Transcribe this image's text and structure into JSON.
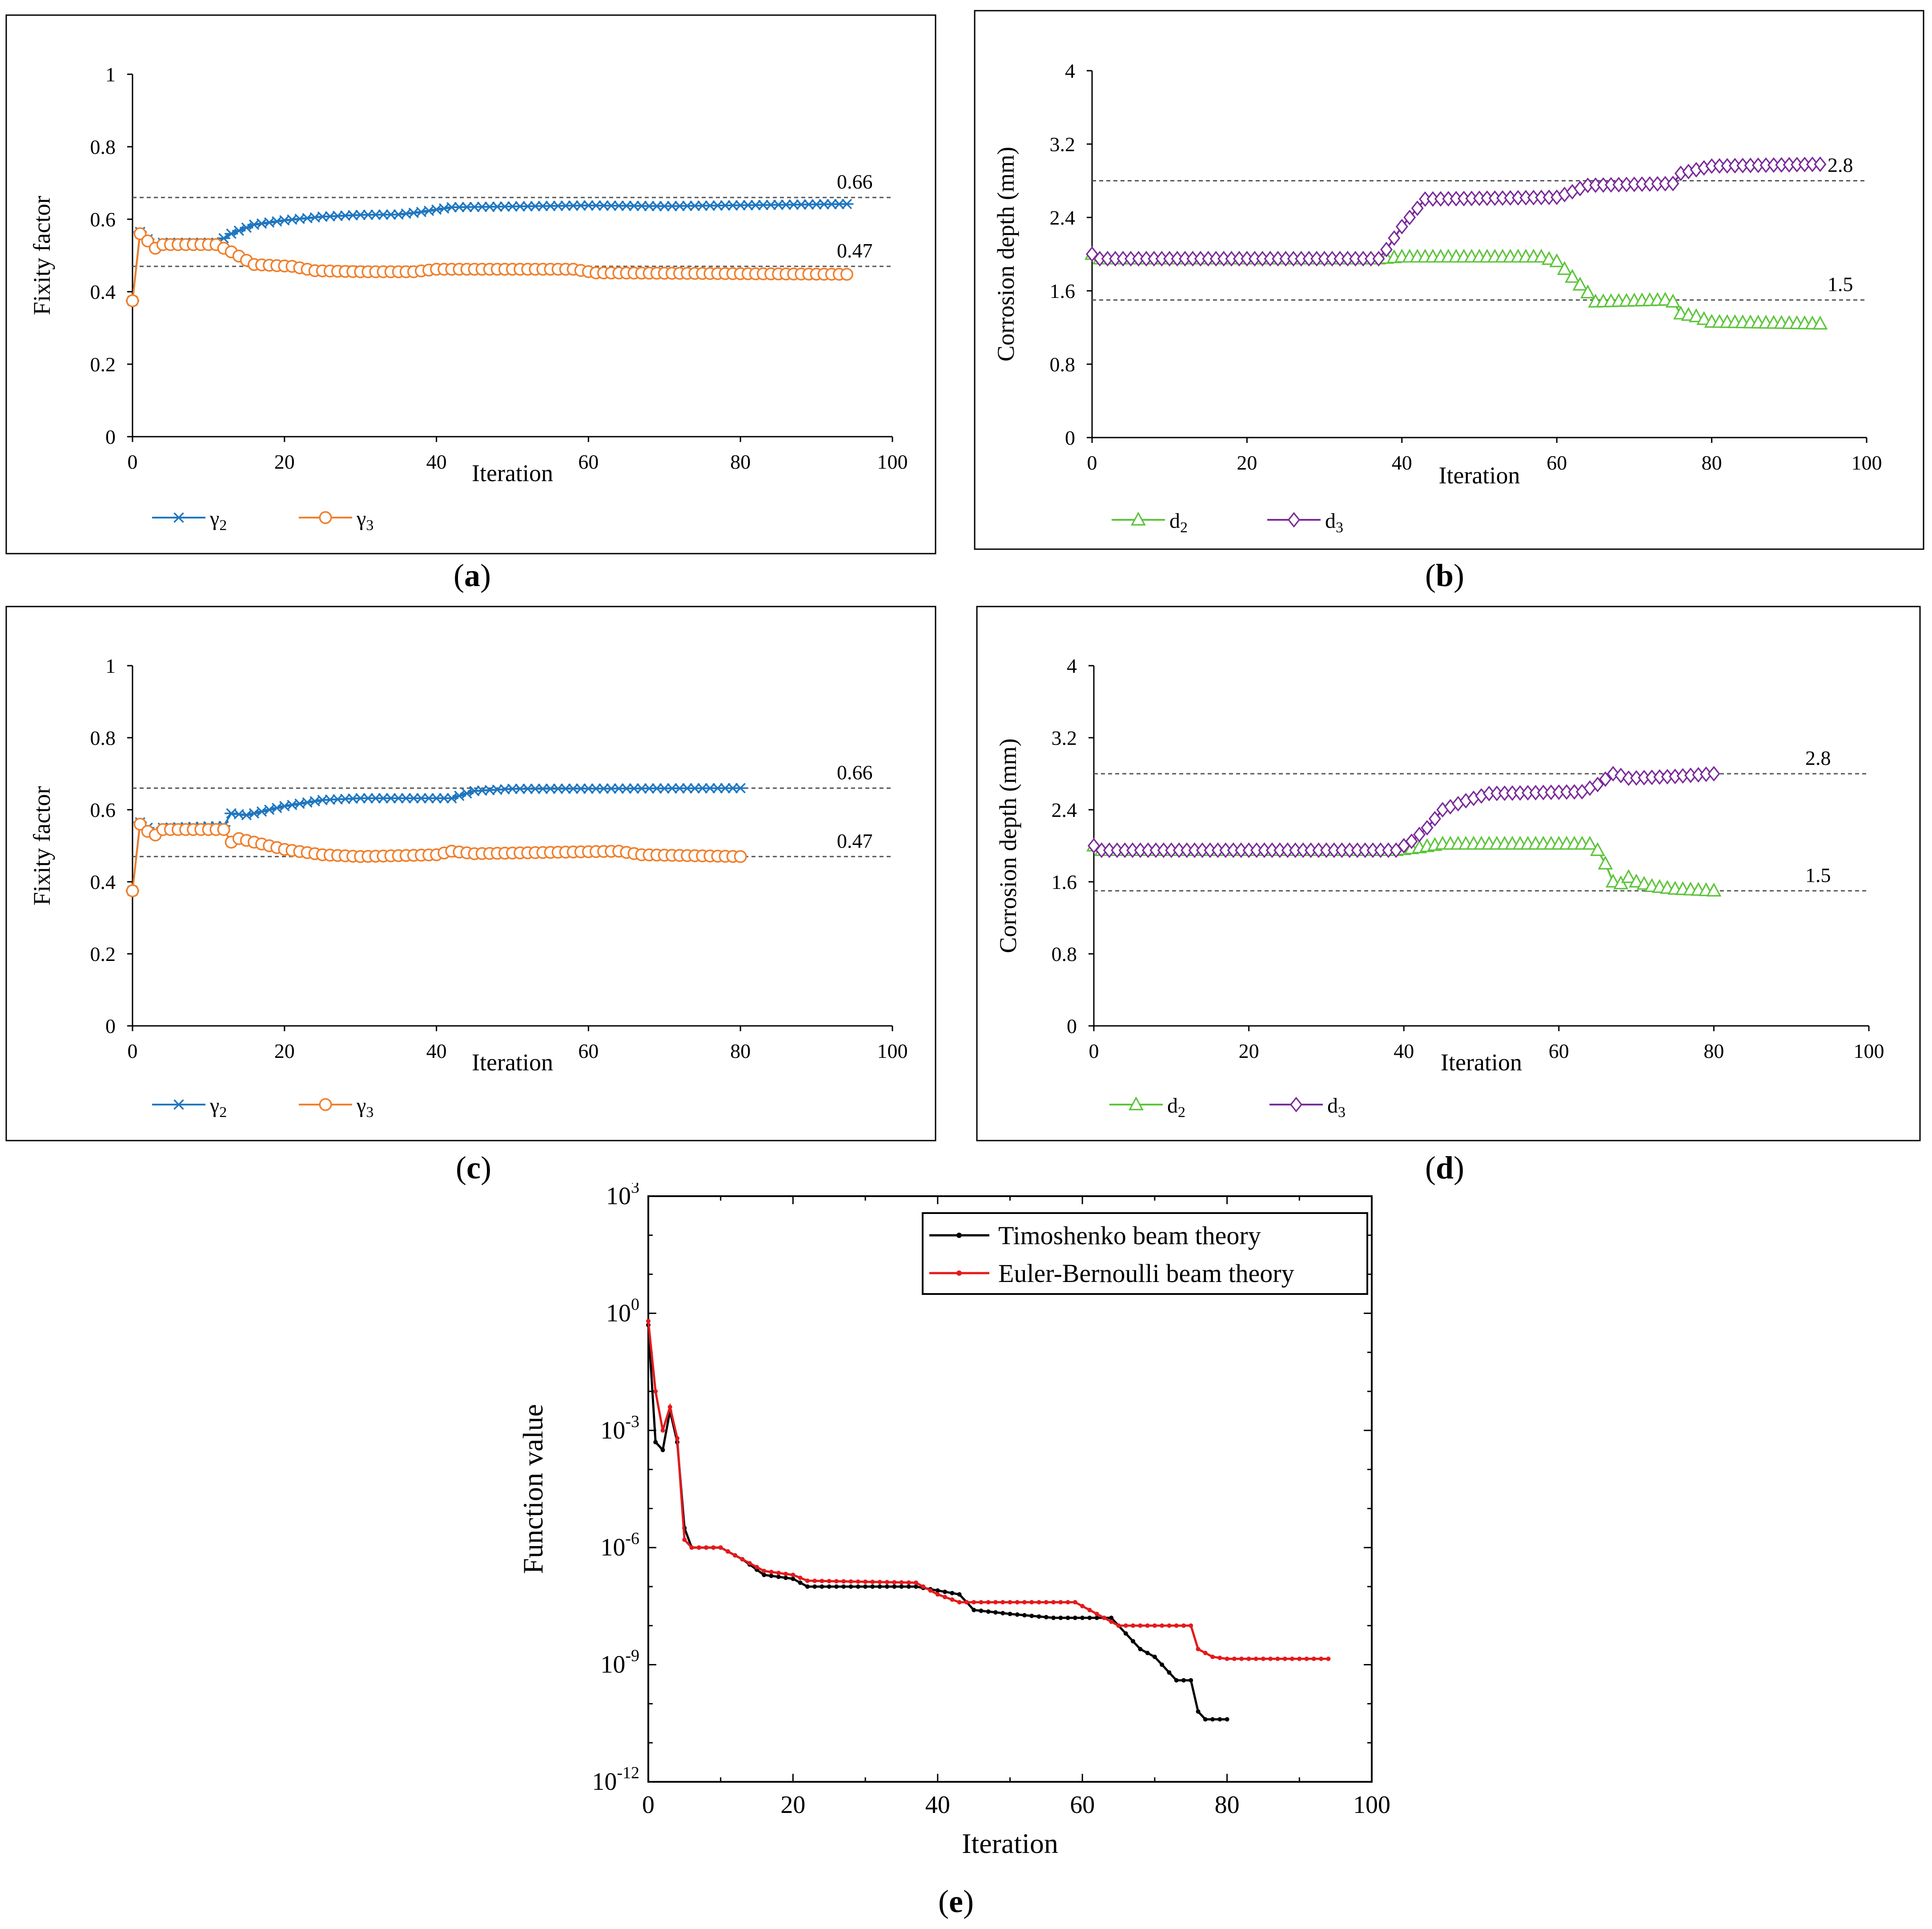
{
  "captions": {
    "a": {
      "open": "(",
      "letter": "a",
      "close": ")"
    },
    "b": {
      "open": "(",
      "letter": "b",
      "close": ")"
    },
    "c": {
      "open": "(",
      "letter": "c",
      "close": ")"
    },
    "d": {
      "open": "(",
      "letter": "d",
      "close": ")"
    },
    "e": {
      "open": "(",
      "letter": "e",
      "close": ")"
    }
  },
  "colors": {
    "blue": "#1f77c0",
    "orange": "#f07f2c",
    "green": "#5cc43a",
    "purple": "#7a2a9a",
    "black": "#000000",
    "red": "#e41a1c"
  },
  "chart_data": [
    {
      "id": "a",
      "type": "line",
      "xlabel": "Iteration",
      "ylabel": "Fixity factor",
      "xlim": [
        0,
        100
      ],
      "ylim": [
        0,
        1
      ],
      "xticks": [
        "0",
        "20",
        "40",
        "60",
        "80",
        "100"
      ],
      "yticks": [
        "0",
        "0.2",
        "0.4",
        "0.6",
        "0.8",
        "1"
      ],
      "ref_lines": [
        {
          "y": 0.66,
          "label": "0.66"
        },
        {
          "y": 0.47,
          "label": "0.47"
        }
      ],
      "series": [
        {
          "name": "γ₂",
          "sub": "2",
          "base": "γ",
          "color": "#1f77c0",
          "marker": "asterisk",
          "keyframes": [
            [
              0,
              0.375
            ],
            [
              1,
              0.565
            ],
            [
              2,
              0.545
            ],
            [
              3,
              0.525
            ],
            [
              4,
              0.535
            ],
            [
              11,
              0.535
            ],
            [
              13,
              0.56
            ],
            [
              16,
              0.585
            ],
            [
              20,
              0.597
            ],
            [
              25,
              0.607
            ],
            [
              30,
              0.612
            ],
            [
              35,
              0.613
            ],
            [
              38,
              0.62
            ],
            [
              42,
              0.633
            ],
            [
              60,
              0.638
            ],
            [
              70,
              0.636
            ],
            [
              94,
              0.642
            ]
          ],
          "n": 95
        },
        {
          "name": "γ₃",
          "sub": "3",
          "base": "γ",
          "color": "#f07f2c",
          "marker": "circle",
          "keyframes": [
            [
              0,
              0.375
            ],
            [
              1,
              0.56
            ],
            [
              2,
              0.54
            ],
            [
              3,
              0.52
            ],
            [
              4,
              0.53
            ],
            [
              11,
              0.53
            ],
            [
              13,
              0.51
            ],
            [
              16,
              0.475
            ],
            [
              21,
              0.47
            ],
            [
              24,
              0.458
            ],
            [
              30,
              0.455
            ],
            [
              37,
              0.455
            ],
            [
              40,
              0.462
            ],
            [
              58,
              0.462
            ],
            [
              61,
              0.452
            ],
            [
              94,
              0.448
            ]
          ],
          "n": 95
        }
      ]
    },
    {
      "id": "b",
      "type": "line",
      "xlabel": "Iteration",
      "ylabel": "Corrosion depth  (mm)",
      "xlim": [
        0,
        100
      ],
      "ylim": [
        0,
        4
      ],
      "xticks": [
        "0",
        "20",
        "40",
        "60",
        "80",
        "100"
      ],
      "yticks": [
        "0",
        "0.8",
        "1.6",
        "2.4",
        "3.2",
        "4"
      ],
      "ref_lines": [
        {
          "y": 2.8,
          "label": "2.8"
        },
        {
          "y": 1.5,
          "label": "1.5"
        }
      ],
      "series": [
        {
          "name": "d₂",
          "sub": "2",
          "base": "d",
          "color": "#5cc43a",
          "marker": "triangle",
          "keyframes": [
            [
              0,
              2.0
            ],
            [
              1,
              1.95
            ],
            [
              37,
              1.95
            ],
            [
              40,
              1.97
            ],
            [
              58,
              1.97
            ],
            [
              60,
              1.92
            ],
            [
              62,
              1.75
            ],
            [
              64,
              1.58
            ],
            [
              65,
              1.48
            ],
            [
              74,
              1.5
            ],
            [
              75,
              1.48
            ],
            [
              76,
              1.35
            ],
            [
              78,
              1.32
            ],
            [
              80,
              1.26
            ],
            [
              94,
              1.24
            ]
          ],
          "n": 95
        },
        {
          "name": "d₃",
          "sub": "3",
          "base": "d",
          "color": "#7a2a9a",
          "marker": "diamond",
          "keyframes": [
            [
              0,
              2.0
            ],
            [
              1,
              1.95
            ],
            [
              37,
              1.95
            ],
            [
              38,
              2.05
            ],
            [
              40,
              2.3
            ],
            [
              42,
              2.5
            ],
            [
              43,
              2.6
            ],
            [
              60,
              2.62
            ],
            [
              62,
              2.68
            ],
            [
              64,
              2.75
            ],
            [
              75,
              2.77
            ],
            [
              76,
              2.88
            ],
            [
              78,
              2.92
            ],
            [
              80,
              2.96
            ],
            [
              94,
              2.98
            ]
          ],
          "n": 95
        }
      ]
    },
    {
      "id": "c",
      "type": "line",
      "xlabel": "Iteration",
      "ylabel": "Fixity factor",
      "xlim": [
        0,
        100
      ],
      "ylim": [
        0,
        1
      ],
      "xticks": [
        "0",
        "20",
        "40",
        "60",
        "80",
        "100"
      ],
      "yticks": [
        "0",
        "0.2",
        "0.4",
        "0.6",
        "0.8",
        "1"
      ],
      "ref_lines": [
        {
          "y": 0.66,
          "label": "0.66"
        },
        {
          "y": 0.47,
          "label": "0.47"
        }
      ],
      "series": [
        {
          "name": "γ₂",
          "sub": "2",
          "base": "γ",
          "color": "#1f77c0",
          "marker": "asterisk",
          "keyframes": [
            [
              0,
              0.375
            ],
            [
              1,
              0.565
            ],
            [
              2,
              0.55
            ],
            [
              3,
              0.535
            ],
            [
              4,
              0.55
            ],
            [
              12,
              0.555
            ],
            [
              13,
              0.59
            ],
            [
              15,
              0.585
            ],
            [
              20,
              0.61
            ],
            [
              25,
              0.627
            ],
            [
              30,
              0.632
            ],
            [
              42,
              0.632
            ],
            [
              45,
              0.652
            ],
            [
              50,
              0.658
            ],
            [
              80,
              0.66
            ]
          ],
          "n": 81
        },
        {
          "name": "γ₃",
          "sub": "3",
          "base": "γ",
          "color": "#f07f2c",
          "marker": "circle",
          "keyframes": [
            [
              0,
              0.375
            ],
            [
              1,
              0.56
            ],
            [
              2,
              0.54
            ],
            [
              3,
              0.53
            ],
            [
              4,
              0.545
            ],
            [
              12,
              0.545
            ],
            [
              13,
              0.51
            ],
            [
              14,
              0.52
            ],
            [
              20,
              0.49
            ],
            [
              25,
              0.475
            ],
            [
              30,
              0.47
            ],
            [
              40,
              0.475
            ],
            [
              42,
              0.485
            ],
            [
              45,
              0.478
            ],
            [
              64,
              0.485
            ],
            [
              67,
              0.475
            ],
            [
              80,
              0.47
            ]
          ],
          "n": 81
        }
      ]
    },
    {
      "id": "d",
      "type": "line",
      "xlabel": "Iteration",
      "ylabel": "Corrosion depth  (mm)",
      "xlim": [
        0,
        100
      ],
      "ylim": [
        0,
        4
      ],
      "xticks": [
        "0",
        "20",
        "40",
        "60",
        "80",
        "100"
      ],
      "yticks": [
        "0",
        "0.8",
        "1.6",
        "2.4",
        "3.2",
        "4"
      ],
      "ref_lines": [
        {
          "y": 2.8,
          "label": "2.8"
        },
        {
          "y": 1.5,
          "label": "1.5"
        }
      ],
      "series": [
        {
          "name": "d₂",
          "sub": "2",
          "base": "d",
          "color": "#5cc43a",
          "marker": "triangle",
          "keyframes": [
            [
              0,
              2.0
            ],
            [
              1,
              1.95
            ],
            [
              39,
              1.95
            ],
            [
              42,
              1.98
            ],
            [
              45,
              2.02
            ],
            [
              64,
              2.02
            ],
            [
              65,
              1.95
            ],
            [
              66,
              1.8
            ],
            [
              67,
              1.6
            ],
            [
              68,
              1.58
            ],
            [
              69,
              1.65
            ],
            [
              70,
              1.6
            ],
            [
              72,
              1.55
            ],
            [
              75,
              1.52
            ],
            [
              80,
              1.5
            ]
          ],
          "n": 81
        },
        {
          "name": "d₃",
          "sub": "3",
          "base": "d",
          "color": "#7a2a9a",
          "marker": "diamond",
          "keyframes": [
            [
              0,
              2.0
            ],
            [
              1,
              1.95
            ],
            [
              39,
              1.95
            ],
            [
              41,
              2.05
            ],
            [
              43,
              2.2
            ],
            [
              45,
              2.4
            ],
            [
              48,
              2.5
            ],
            [
              51,
              2.58
            ],
            [
              63,
              2.6
            ],
            [
              65,
              2.68
            ],
            [
              67,
              2.8
            ],
            [
              68,
              2.78
            ],
            [
              69,
              2.75
            ],
            [
              75,
              2.77
            ],
            [
              80,
              2.8
            ]
          ],
          "n": 81
        }
      ]
    },
    {
      "id": "e",
      "type": "line",
      "xlabel": "Iteration",
      "ylabel": "Function value",
      "yscale": "log",
      "xlim": [
        0,
        100
      ],
      "ylim_exp": [
        -12,
        3
      ],
      "xticks": [
        "0",
        "20",
        "40",
        "60",
        "80",
        "100"
      ],
      "ytick_exps": [
        "-12",
        "-9",
        "-6",
        "-3",
        "0",
        "3"
      ],
      "ytick_base": "10",
      "series": [
        {
          "name": "Timoshenko beam theory",
          "color": "#000000",
          "log_keyframes": [
            [
              0,
              -0.3
            ],
            [
              1,
              -3.3
            ],
            [
              2,
              -3.5
            ],
            [
              3,
              -2.5
            ],
            [
              4,
              -3.3
            ],
            [
              5,
              -5.5
            ],
            [
              6,
              -6.0
            ],
            [
              10,
              -6.0
            ],
            [
              13,
              -6.3
            ],
            [
              16,
              -6.7
            ],
            [
              20,
              -6.8
            ],
            [
              22,
              -7.0
            ],
            [
              37,
              -7.0
            ],
            [
              40,
              -7.1
            ],
            [
              43,
              -7.2
            ],
            [
              45,
              -7.6
            ],
            [
              50,
              -7.7
            ],
            [
              56,
              -7.8
            ],
            [
              64,
              -7.8
            ],
            [
              66,
              -8.2
            ],
            [
              68,
              -8.6
            ],
            [
              70,
              -8.8
            ],
            [
              73,
              -9.4
            ],
            [
              75,
              -9.4
            ],
            [
              76,
              -10.2
            ],
            [
              77,
              -10.4
            ],
            [
              80,
              -10.4
            ]
          ],
          "n": 81
        },
        {
          "name": "Euler-Bernoulli beam theory",
          "color": "#e41a1c",
          "log_keyframes": [
            [
              0,
              -0.2
            ],
            [
              1,
              -2.0
            ],
            [
              2,
              -3.0
            ],
            [
              3,
              -2.4
            ],
            [
              4,
              -3.2
            ],
            [
              5,
              -5.8
            ],
            [
              6,
              -6.0
            ],
            [
              10,
              -6.0
            ],
            [
              13,
              -6.3
            ],
            [
              16,
              -6.6
            ],
            [
              20,
              -6.7
            ],
            [
              22,
              -6.85
            ],
            [
              37,
              -6.9
            ],
            [
              40,
              -7.2
            ],
            [
              43,
              -7.4
            ],
            [
              59,
              -7.4
            ],
            [
              62,
              -7.7
            ],
            [
              65,
              -8.0
            ],
            [
              75,
              -8.0
            ],
            [
              76,
              -8.6
            ],
            [
              78,
              -8.8
            ],
            [
              80,
              -8.85
            ],
            [
              94,
              -8.85
            ]
          ],
          "n": 95
        }
      ]
    }
  ]
}
